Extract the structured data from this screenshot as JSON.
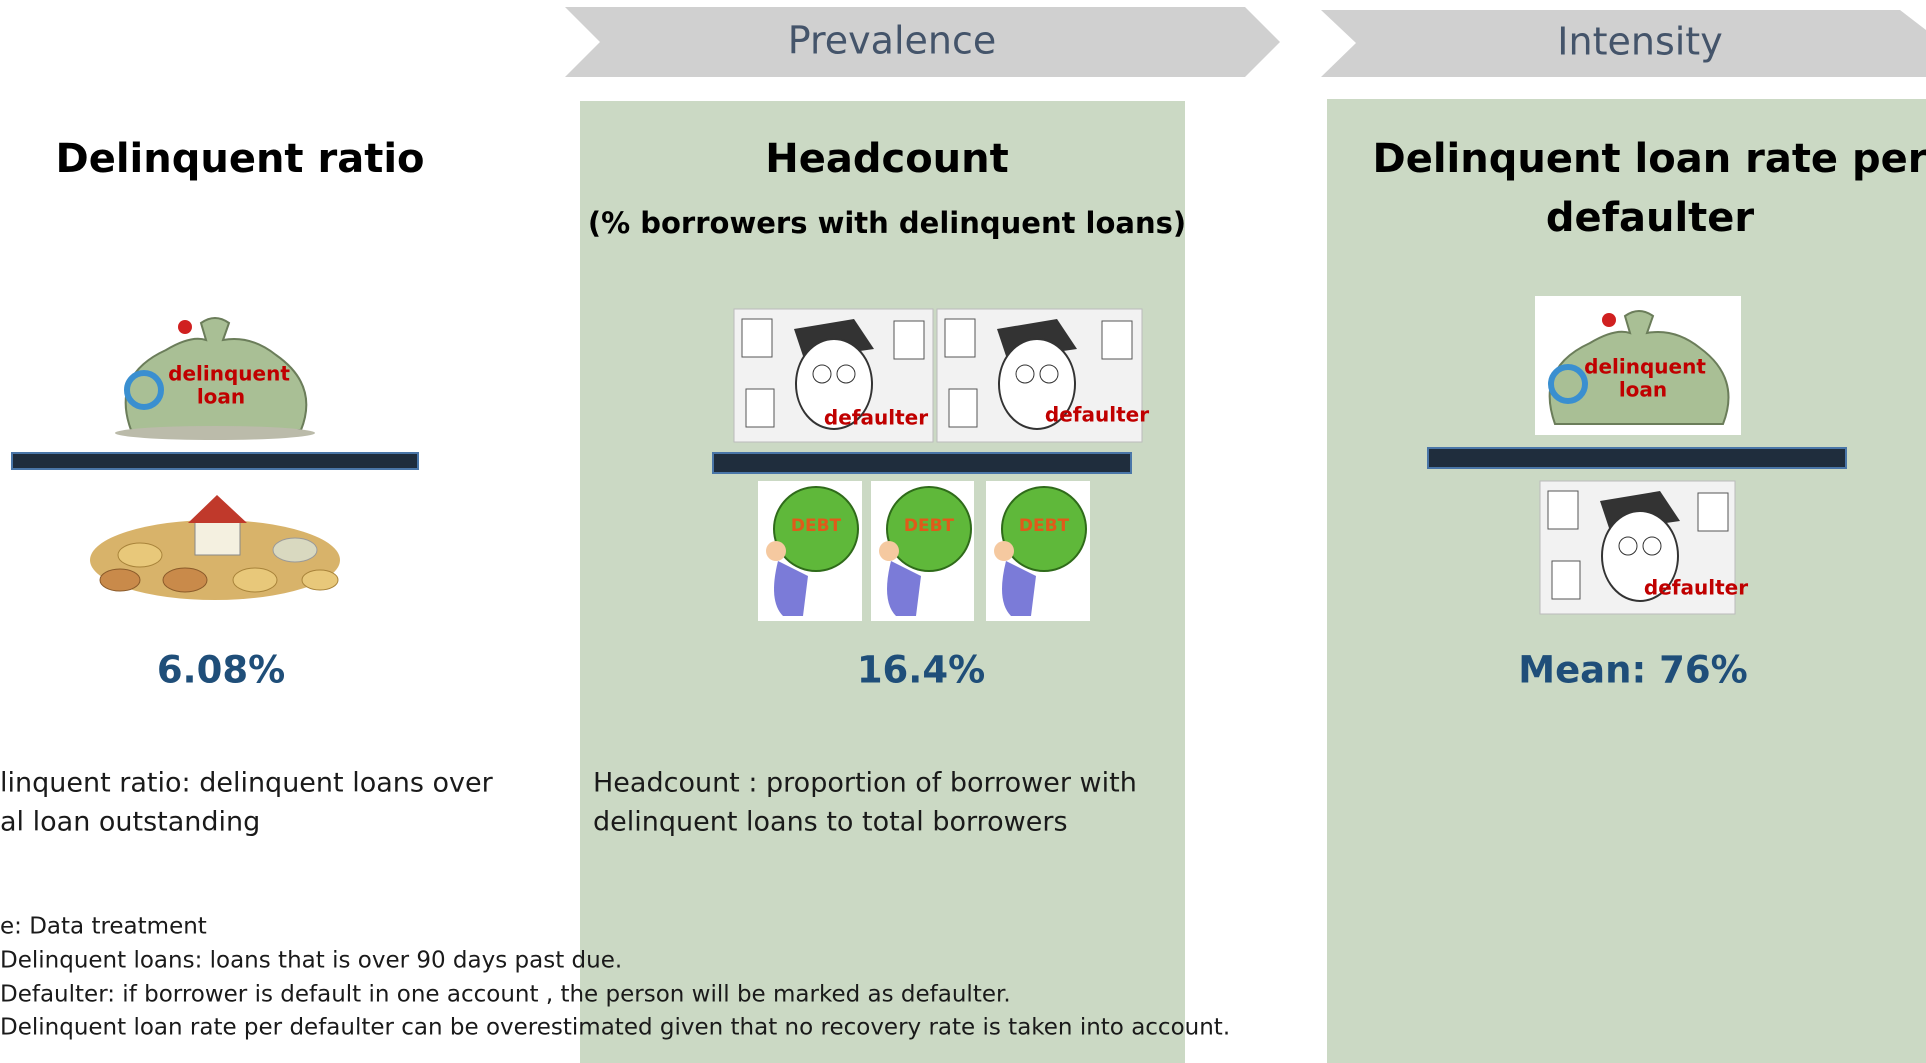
{
  "header": {
    "prevalence": "Prevalence",
    "intensity": "Intensity"
  },
  "columns": [
    {
      "title": [
        "Delinquent ratio"
      ],
      "bag_label": [
        "delinquent",
        "loan"
      ],
      "value": "6.08%",
      "description": [
        "linquent ratio: delinquent loans over",
        "al loan outstanding"
      ]
    },
    {
      "title": [
        "Headcount"
      ],
      "subtitle": "(% borrowers with delinquent loans)",
      "person_label": [
        "defaulter",
        "defaulter"
      ],
      "debt_label": [
        "DEBT",
        "DEBT",
        "DEBT"
      ],
      "value": "16.4%",
      "description": [
        "Headcount : proportion of borrower with",
        "delinquent loans to total borrowers"
      ]
    },
    {
      "title": [
        "Delinquent loan rate per",
        "defaulter"
      ],
      "bag_label": [
        "delinquent",
        "loan"
      ],
      "person_label": [
        "defaulter"
      ],
      "value": "Mean: 76%"
    }
  ],
  "notes": [
    "e: Data treatment",
    "Delinquent loans: loans that is over 90 days past due.",
    "Defaulter: if borrower is default in one account , the person will be marked as defaulter.",
    "Delinquent loan rate per defaulter can be overestimated given that no recovery rate is taken into account."
  ]
}
